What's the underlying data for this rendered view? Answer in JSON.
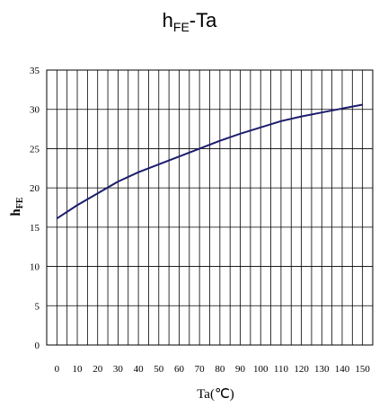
{
  "chart_data": {
    "type": "line",
    "title": {
      "main": "h",
      "sub": "FE",
      "suffix": "-Ta"
    },
    "ylabel": {
      "main": "h",
      "sub": "FE"
    },
    "xlabel": "Ta(℃)",
    "xlim": [
      -5,
      155
    ],
    "ylim": [
      0,
      35
    ],
    "x_ticks": [
      0,
      10,
      20,
      30,
      40,
      50,
      60,
      70,
      80,
      90,
      100,
      110,
      120,
      130,
      140,
      150
    ],
    "x_tick_labels": [
      "0",
      "10",
      "20",
      "30",
      "40",
      "50",
      "60",
      "70",
      "80",
      "90",
      "100",
      "110",
      "120",
      "130",
      "140",
      "150"
    ],
    "y_ticks": [
      0,
      5,
      10,
      15,
      20,
      25,
      30,
      35
    ],
    "y_tick_labels": [
      "0",
      "5",
      "10",
      "15",
      "20",
      "25",
      "30",
      "35"
    ],
    "grid": true,
    "series": [
      {
        "color": "#1c1c6e",
        "x": [
          0,
          10,
          20,
          30,
          40,
          50,
          60,
          70,
          80,
          90,
          100,
          110,
          120,
          130,
          140,
          150
        ],
        "y": [
          16.1,
          17.8,
          19.3,
          20.8,
          22.0,
          23.0,
          24.0,
          25.0,
          26.0,
          26.9,
          27.7,
          28.5,
          29.1,
          29.6,
          30.1,
          30.6
        ]
      }
    ]
  }
}
